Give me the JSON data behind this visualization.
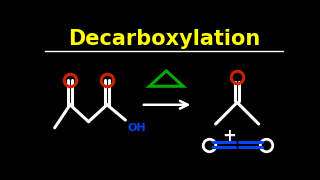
{
  "title": "Decarboxylation",
  "title_color": "#FFFF00",
  "bg_color": "#000000",
  "white": "#FFFFFF",
  "red": "#CC2200",
  "blue": "#0044FF",
  "green": "#00AA00",
  "title_fontsize": 15,
  "lw": 2.2
}
